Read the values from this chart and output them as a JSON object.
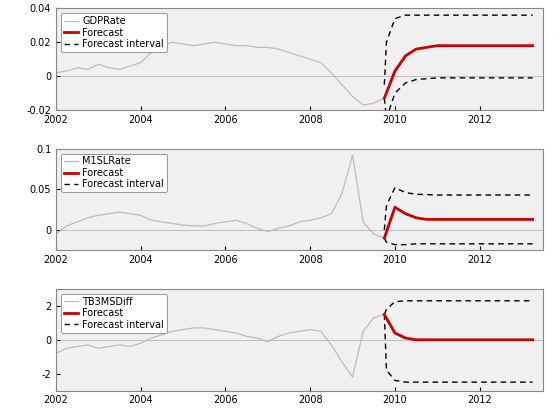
{
  "gdp": {
    "label": "GDPRate",
    "ylim": [
      -0.02,
      0.04
    ],
    "yticks": [
      -0.02,
      0,
      0.02,
      0.04
    ],
    "history_x": [
      2002.0,
      2002.25,
      2002.5,
      2002.75,
      2003.0,
      2003.25,
      2003.5,
      2003.75,
      2004.0,
      2004.25,
      2004.5,
      2004.75,
      2005.0,
      2005.25,
      2005.5,
      2005.75,
      2006.0,
      2006.25,
      2006.5,
      2006.75,
      2007.0,
      2007.25,
      2007.5,
      2007.75,
      2008.0,
      2008.25,
      2008.5,
      2008.75,
      2009.0,
      2009.25,
      2009.5,
      2009.75
    ],
    "history_y": [
      0.002,
      0.003,
      0.005,
      0.004,
      0.007,
      0.005,
      0.004,
      0.006,
      0.008,
      0.014,
      0.018,
      0.02,
      0.019,
      0.018,
      0.019,
      0.02,
      0.019,
      0.018,
      0.018,
      0.017,
      0.017,
      0.016,
      0.014,
      0.012,
      0.01,
      0.008,
      0.002,
      -0.005,
      -0.012,
      -0.017,
      -0.016,
      -0.013
    ],
    "forecast_x": [
      2009.75,
      2010.0,
      2010.25,
      2010.5,
      2010.75,
      2011.0,
      2011.25,
      2011.5,
      2011.75,
      2012.0,
      2012.25,
      2012.5,
      2012.75,
      2013.0,
      2013.25
    ],
    "forecast_y": [
      -0.013,
      0.003,
      0.012,
      0.016,
      0.017,
      0.018,
      0.018,
      0.018,
      0.018,
      0.018,
      0.018,
      0.018,
      0.018,
      0.018,
      0.018
    ],
    "upper_x": [
      2009.75,
      2009.8,
      2010.0,
      2010.25,
      2010.5,
      2011.0,
      2012.0,
      2013.0,
      2013.25
    ],
    "upper_y": [
      -0.005,
      0.02,
      0.034,
      0.036,
      0.036,
      0.036,
      0.036,
      0.036,
      0.036
    ],
    "lower_x": [
      2009.75,
      2009.8,
      2010.0,
      2010.25,
      2010.5,
      2011.0,
      2012.0,
      2013.0,
      2013.25
    ],
    "lower_y": [
      -0.013,
      -0.025,
      -0.01,
      -0.004,
      -0.002,
      -0.001,
      -0.001,
      -0.001,
      -0.001
    ]
  },
  "m1sl": {
    "label": "M1SLRate",
    "ylim": [
      -0.025,
      0.1
    ],
    "yticks": [
      0,
      0.05,
      0.1
    ],
    "history_x": [
      2002.0,
      2002.25,
      2002.5,
      2002.75,
      2003.0,
      2003.25,
      2003.5,
      2003.75,
      2004.0,
      2004.25,
      2004.5,
      2004.75,
      2005.0,
      2005.25,
      2005.5,
      2005.75,
      2006.0,
      2006.25,
      2006.5,
      2006.75,
      2007.0,
      2007.25,
      2007.5,
      2007.75,
      2008.0,
      2008.25,
      2008.5,
      2008.75,
      2009.0,
      2009.25,
      2009.5,
      2009.75
    ],
    "history_y": [
      -0.005,
      0.005,
      0.01,
      0.015,
      0.018,
      0.02,
      0.022,
      0.02,
      0.018,
      0.012,
      0.01,
      0.008,
      0.006,
      0.005,
      0.005,
      0.008,
      0.01,
      0.012,
      0.008,
      0.002,
      -0.002,
      0.002,
      0.005,
      0.01,
      0.012,
      0.015,
      0.02,
      0.045,
      0.092,
      0.01,
      -0.005,
      -0.01
    ],
    "forecast_x": [
      2009.75,
      2010.0,
      2010.25,
      2010.5,
      2010.75,
      2011.0,
      2011.25,
      2011.5,
      2011.75,
      2012.0,
      2012.25,
      2012.5,
      2012.75,
      2013.0,
      2013.25
    ],
    "forecast_y": [
      -0.01,
      0.028,
      0.02,
      0.015,
      0.013,
      0.013,
      0.013,
      0.013,
      0.013,
      0.013,
      0.013,
      0.013,
      0.013,
      0.013,
      0.013
    ],
    "upper_x": [
      2009.75,
      2009.8,
      2010.0,
      2010.25,
      2010.5,
      2011.0,
      2012.0,
      2013.0,
      2013.25
    ],
    "upper_y": [
      0.0,
      0.03,
      0.052,
      0.046,
      0.044,
      0.043,
      0.043,
      0.043,
      0.043
    ],
    "lower_x": [
      2009.75,
      2009.8,
      2010.0,
      2010.25,
      2010.5,
      2011.0,
      2012.0,
      2013.0,
      2013.25
    ],
    "lower_y": [
      -0.01,
      -0.015,
      -0.018,
      -0.018,
      -0.017,
      -0.017,
      -0.017,
      -0.017,
      -0.017
    ]
  },
  "tb3ms": {
    "label": "TB3MSDiff",
    "ylim": [
      -3.0,
      3.0
    ],
    "yticks": [
      -2,
      0,
      2
    ],
    "history_x": [
      2002.0,
      2002.25,
      2002.5,
      2002.75,
      2003.0,
      2003.25,
      2003.5,
      2003.75,
      2004.0,
      2004.25,
      2004.5,
      2004.75,
      2005.0,
      2005.25,
      2005.5,
      2005.75,
      2006.0,
      2006.25,
      2006.5,
      2006.75,
      2007.0,
      2007.25,
      2007.5,
      2007.75,
      2008.0,
      2008.25,
      2008.5,
      2008.75,
      2009.0,
      2009.25,
      2009.5,
      2009.75
    ],
    "history_y": [
      -0.8,
      -0.5,
      -0.4,
      -0.3,
      -0.5,
      -0.4,
      -0.3,
      -0.4,
      -0.2,
      0.1,
      0.3,
      0.5,
      0.6,
      0.7,
      0.7,
      0.6,
      0.5,
      0.4,
      0.2,
      0.1,
      -0.1,
      0.2,
      0.4,
      0.5,
      0.6,
      0.5,
      -0.3,
      -1.3,
      -2.2,
      0.5,
      1.3,
      1.5
    ],
    "forecast_x": [
      2009.75,
      2010.0,
      2010.25,
      2010.5,
      2010.75,
      2011.0,
      2011.25,
      2011.5,
      2011.75,
      2012.0,
      2012.25,
      2012.5,
      2012.75,
      2013.0,
      2013.25
    ],
    "forecast_y": [
      1.5,
      0.4,
      0.1,
      0.0,
      0.0,
      0.0,
      0.0,
      0.0,
      0.0,
      0.0,
      0.0,
      0.0,
      0.0,
      0.0,
      0.0
    ],
    "upper_x": [
      2009.75,
      2009.8,
      2010.0,
      2010.25,
      2010.5,
      2011.0,
      2012.0,
      2013.0,
      2013.25
    ],
    "upper_y": [
      1.5,
      1.8,
      2.25,
      2.3,
      2.3,
      2.3,
      2.3,
      2.3,
      2.3
    ],
    "lower_x": [
      2009.75,
      2009.8,
      2010.0,
      2010.25,
      2010.5,
      2011.0,
      2012.0,
      2013.0,
      2013.25
    ],
    "lower_y": [
      1.5,
      -1.8,
      -2.4,
      -2.5,
      -2.5,
      -2.5,
      -2.5,
      -2.5,
      -2.5
    ]
  },
  "xlim": [
    2002.0,
    2013.5
  ],
  "xticks": [
    2002,
    2004,
    2006,
    2008,
    2010,
    2012
  ],
  "history_color": "#bbbbbb",
  "forecast_color": "#cc0000",
  "interval_color": "#000000",
  "legend_fontsize": 7,
  "tick_fontsize": 7,
  "bg_color": "#f0f0f0"
}
